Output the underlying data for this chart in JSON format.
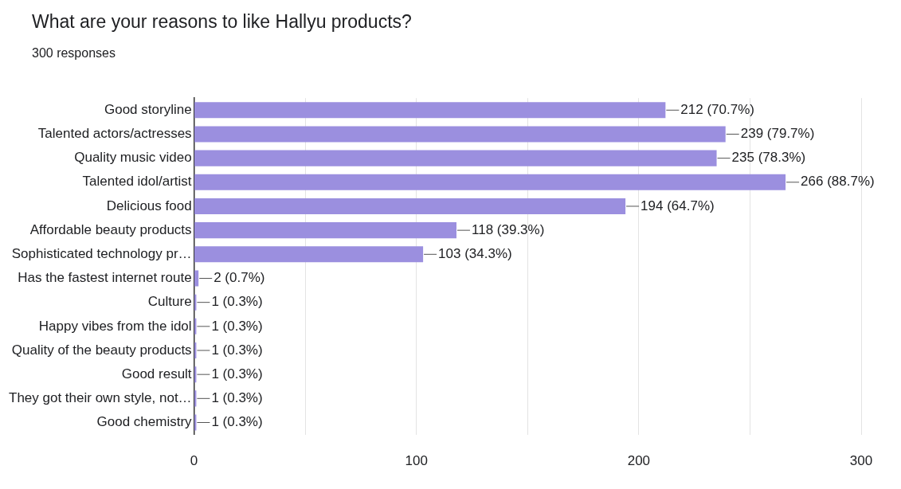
{
  "chart_data": {
    "type": "bar",
    "orientation": "horizontal",
    "title": "What are your reasons to like Hallyu products?",
    "subtitle": "300 responses",
    "categories": [
      "Good storyline",
      "Talented actors/actresses",
      "Quality music video",
      "Talented idol/artist",
      "Delicious food",
      "Affordable beauty products",
      "Sophisticated technology pr…",
      "Has the fastest internet route",
      "Culture",
      "Happy vibes from the idol",
      "Quality of the beauty products",
      "Good result",
      "They got their own style, not…",
      "Good chemistry"
    ],
    "values": [
      212,
      239,
      235,
      266,
      194,
      118,
      103,
      2,
      1,
      1,
      1,
      1,
      1,
      1
    ],
    "value_labels": [
      "212 (70.7%)",
      "239 (79.7%)",
      "235 (78.3%)",
      "266 (88.7%)",
      "194 (64.7%)",
      "118 (39.3%)",
      "103 (34.3%)",
      "2 (0.7%)",
      "1 (0.3%)",
      "1 (0.3%)",
      "1 (0.3%)",
      "1 (0.3%)",
      "1 (0.3%)",
      "1 (0.3%)"
    ],
    "color": "#9b8fdf",
    "xlim": [
      0,
      300
    ],
    "xticks": [
      0,
      {
        "value": 50,
        "label": null
      },
      100,
      {
        "value": 150,
        "label": null
      },
      200,
      {
        "value": 250,
        "label": null
      },
      300
    ],
    "grid": "x",
    "legend": false
  }
}
